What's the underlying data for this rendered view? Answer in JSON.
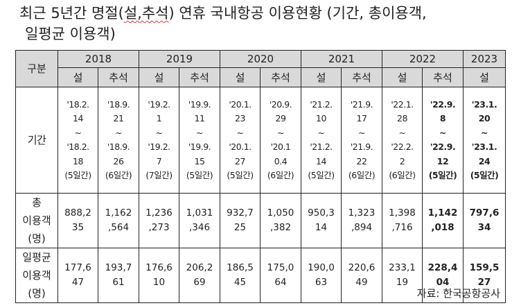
{
  "title": {
    "line1_pre": "최근 5년간 명절(",
    "line1_wavy": "설,추석",
    "line1_post": ") 연휴 국내항공 이용현황 (기간, 총이용객,",
    "line2": "일평균 이용객)"
  },
  "table": {
    "header_label": "구분",
    "years": [
      "2018",
      "2019",
      "2020",
      "2021",
      "2022",
      "2023"
    ],
    "holidays": [
      "설",
      "추석",
      "설",
      "추석",
      "설",
      "추석",
      "설",
      "추석",
      "설",
      "추석",
      "설"
    ],
    "row_labels": {
      "period": "기간",
      "total": [
        "총",
        "이용객",
        "(명)"
      ],
      "avg": [
        "일평균",
        "이용객",
        "(명)"
      ]
    },
    "period": [
      [
        "'18.2.",
        "14",
        "~",
        "'18.2.",
        "18",
        "(5일간)"
      ],
      [
        "'18.9.",
        "21",
        "~",
        "'18.9.",
        "26",
        "(6일간)"
      ],
      [
        "'19.2.",
        "1",
        "~",
        "'19.2.",
        "7",
        "(7일간)"
      ],
      [
        "'19.9.",
        "11",
        "~",
        "'19.9.",
        "15",
        "(5일간)"
      ],
      [
        "'20.1.",
        "23",
        "~",
        "'20.1.",
        "27",
        "(5일간)"
      ],
      [
        "'20.9.",
        "29",
        "~",
        "'20.1",
        "0.4",
        "(6일간)"
      ],
      [
        "'21.2.",
        "10",
        "~",
        "'21.2.",
        "14",
        "(5일간)"
      ],
      [
        "'21.9.",
        "17",
        "~",
        "'21.9.",
        "22",
        "(6일간)"
      ],
      [
        "'22.1.",
        "28",
        "~",
        "'22.2.",
        "2",
        "(6일간)"
      ],
      [
        "'22.9.",
        "8",
        "~",
        "'22.9.",
        "12",
        "(5일간)"
      ],
      [
        "'23.1.",
        "20",
        "~",
        "'23.1.",
        "24",
        "(5일간)"
      ]
    ],
    "total": [
      [
        "888,2",
        "35"
      ],
      [
        "1,162",
        ",564"
      ],
      [
        "1,236",
        ",273"
      ],
      [
        "1,031",
        ",346"
      ],
      [
        "932,7",
        "25"
      ],
      [
        "1,050",
        ",382"
      ],
      [
        "950,3",
        "14"
      ],
      [
        "1,323",
        ",894"
      ],
      [
        "1,398",
        ",716"
      ],
      [
        "1,142",
        ",018"
      ],
      [
        "797,6",
        "34"
      ]
    ],
    "avg": [
      [
        "177,6",
        "47"
      ],
      [
        "193,7",
        "61"
      ],
      [
        "176,6",
        "10"
      ],
      [
        "206,2",
        "69"
      ],
      [
        "186,5",
        "45"
      ],
      [
        "175,0",
        "64"
      ],
      [
        "190,0",
        "63"
      ],
      [
        "220,6",
        "49"
      ],
      [
        "233,1",
        "19"
      ],
      [
        "228,4",
        "04"
      ],
      [
        "159,5",
        "27"
      ]
    ]
  },
  "source": "자료: 한국공항공사"
}
